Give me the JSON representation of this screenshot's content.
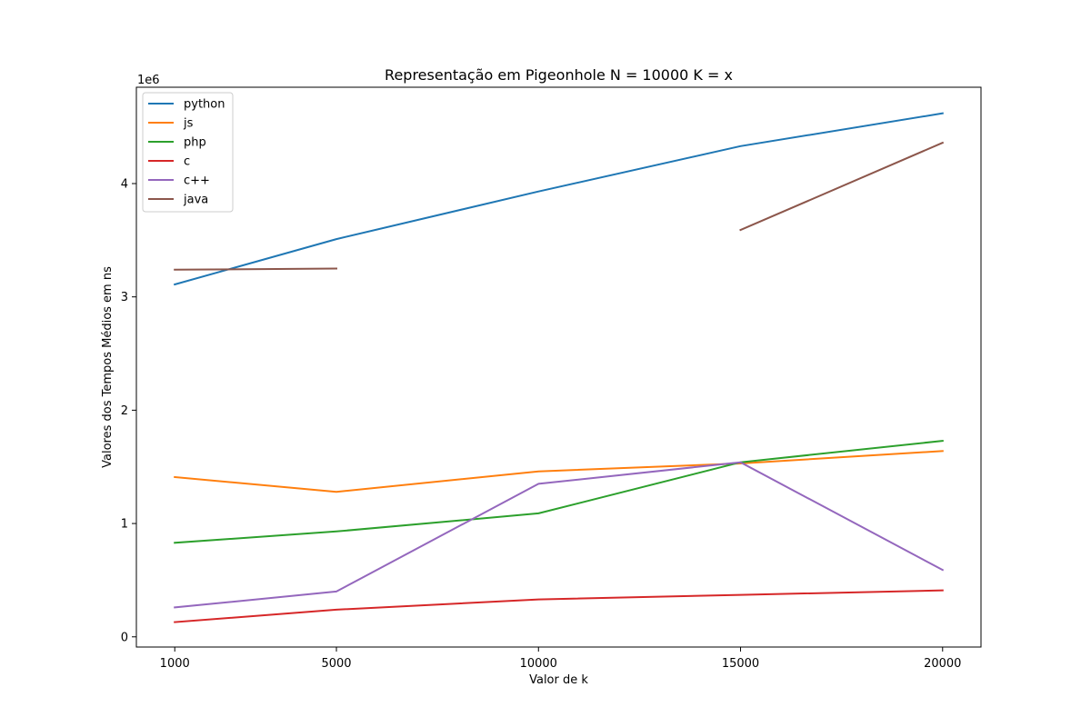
{
  "chart_data": {
    "type": "line",
    "title": "Representação em Pigeonhole N = 10000 K = x",
    "xlabel": "Valor de k",
    "ylabel": "Valores dos Tempos Médios em ns",
    "y_offset_label": "1e6",
    "x": [
      1000,
      5000,
      10000,
      15000,
      20000
    ],
    "x_ticks": [
      "1000",
      "5000",
      "10000",
      "15000",
      "20000"
    ],
    "y_ticks": [
      0,
      1,
      2,
      3,
      4
    ],
    "ylim": [
      -0.09,
      4.85
    ],
    "y_scale_multiplier": 1000000,
    "legend_position": "upper-left",
    "grid": false,
    "series": [
      {
        "name": "python",
        "color": "#1f77b4",
        "values": [
          3.11,
          3.51,
          3.93,
          4.33,
          4.62
        ]
      },
      {
        "name": "js",
        "color": "#ff7f0e",
        "values": [
          1.41,
          1.28,
          1.46,
          1.53,
          1.64
        ]
      },
      {
        "name": "php",
        "color": "#2ca02c",
        "values": [
          0.83,
          0.93,
          1.09,
          1.54,
          1.73
        ]
      },
      {
        "name": "c",
        "color": "#d62728",
        "values": [
          0.13,
          0.24,
          0.33,
          0.37,
          0.41
        ]
      },
      {
        "name": "c++",
        "color": "#9467bd",
        "values": [
          0.26,
          0.4,
          1.35,
          1.54,
          0.59
        ]
      },
      {
        "name": "java",
        "color": "#8c564b",
        "values": [
          3.24,
          3.25,
          null,
          3.59,
          4.36
        ]
      }
    ]
  }
}
